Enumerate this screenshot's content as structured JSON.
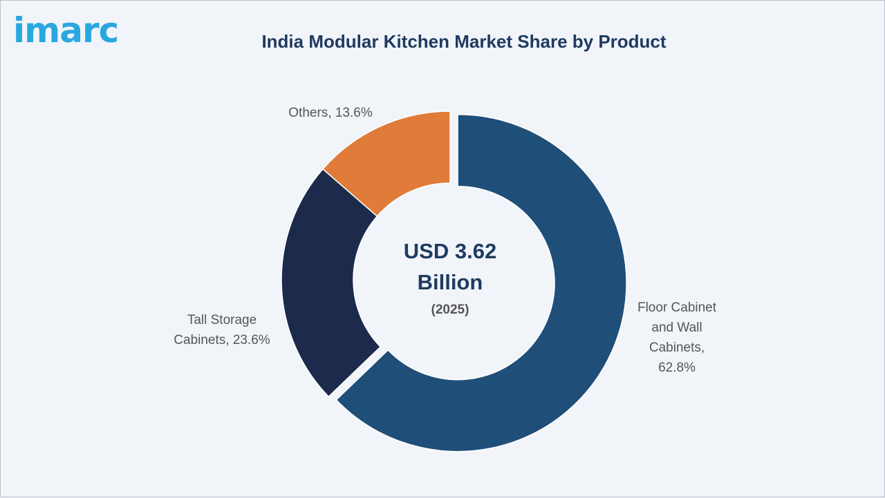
{
  "logo": {
    "text": "imarc"
  },
  "title": "India Modular Kitchen Market Share by Product",
  "center": {
    "value": "USD 3.62\nBillion",
    "year": "(2025)"
  },
  "labels": {
    "floor": "Floor Cabinet\nand Wall\nCabinets,\n62.8%",
    "tall": "Tall Storage\nCabinets, 23.6%",
    "others": "Others, 13.6%"
  },
  "chart_data": {
    "type": "pie",
    "title": "India Modular Kitchen Market Share by Product",
    "unit": "%",
    "categories": [
      "Floor Cabinet and Wall Cabinets",
      "Tall Storage Cabinets",
      "Others"
    ],
    "values": [
      62.8,
      23.6,
      13.6
    ],
    "colors": [
      "#1f4e79",
      "#1c2a4b",
      "#e07b39"
    ],
    "exploded": "Floor Cabinet and Wall Cabinets",
    "style": "donut"
  }
}
